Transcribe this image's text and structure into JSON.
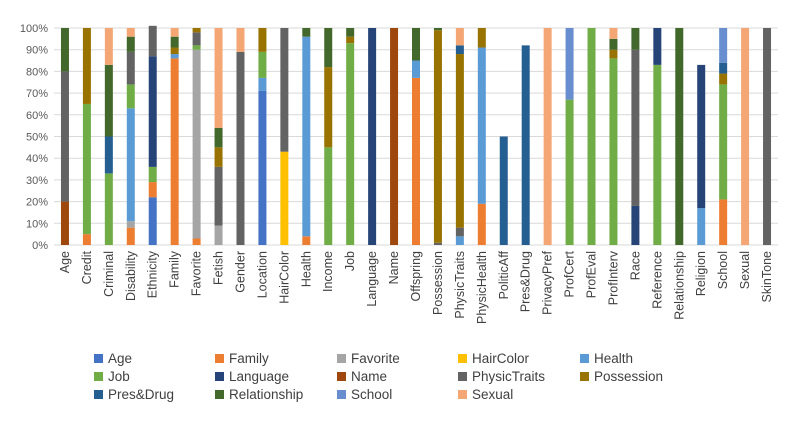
{
  "chart_data": {
    "type": "bar",
    "stacked": true,
    "y_tick_labels": [
      "0%",
      "10%",
      "20%",
      "30%",
      "40%",
      "50%",
      "60%",
      "70%",
      "80%",
      "90%",
      "100%"
    ],
    "ylim": [
      0,
      100
    ],
    "grid": true,
    "legend_position": "bottom",
    "categories": [
      "Age",
      "Credit",
      "Criminal",
      "Disability",
      "Ethnicity",
      "Family",
      "Favorite",
      "Fetish",
      "Gender",
      "Location",
      "HairColor",
      "Health",
      "Income",
      "Job",
      "Language",
      "Name",
      "Offspring",
      "Possession",
      "PhysicTraits",
      "PhysicHealth",
      "PoliticAff",
      "Pres&Drug",
      "PrivacyPref",
      "ProfCert",
      "ProfEval",
      "ProfInterv",
      "Race",
      "Reference",
      "Relationship",
      "Religion",
      "School",
      "Sexual",
      "SkinTone"
    ],
    "series": [
      {
        "name": "Age",
        "color": "#4472C4",
        "values": [
          0,
          0,
          0,
          0,
          22,
          0,
          0,
          0,
          0,
          71,
          0,
          0,
          0,
          0,
          0,
          0,
          0,
          0,
          0,
          0,
          0,
          0,
          0,
          0,
          0,
          0,
          0,
          0,
          0,
          0,
          0,
          0,
          0
        ]
      },
      {
        "name": "Family",
        "color": "#ED7D31",
        "values": [
          0,
          5,
          0,
          8,
          7,
          86,
          3,
          0,
          0,
          0,
          0,
          4,
          0,
          0,
          0,
          0,
          77,
          0,
          0,
          19,
          0,
          0,
          0,
          0,
          0,
          0,
          0,
          0,
          0,
          0,
          21,
          0,
          0
        ]
      },
      {
        "name": "Favorite",
        "color": "#A5A5A5",
        "values": [
          0,
          0,
          0,
          3,
          0,
          0,
          87,
          9,
          0,
          0,
          0,
          0,
          0,
          0,
          0,
          0,
          0,
          0,
          0,
          0,
          0,
          0,
          0,
          0,
          0,
          0,
          0,
          0,
          0,
          0,
          0,
          0,
          0
        ]
      },
      {
        "name": "HairColor",
        "color": "#FFC000",
        "values": [
          0,
          0,
          0,
          0,
          0,
          0,
          0,
          0,
          0,
          0,
          43,
          0,
          0,
          0,
          0,
          0,
          0,
          0,
          0,
          0,
          0,
          0,
          0,
          0,
          0,
          0,
          0,
          0,
          0,
          0,
          0,
          0,
          0
        ]
      },
      {
        "name": "Health",
        "color": "#5B9BD5",
        "values": [
          0,
          0,
          0,
          52,
          0,
          2,
          0,
          0,
          0,
          6,
          0,
          92,
          0,
          0,
          0,
          0,
          8,
          0,
          4,
          72,
          0,
          0,
          0,
          0,
          0,
          0,
          0,
          0,
          0,
          17,
          0,
          0,
          0
        ]
      },
      {
        "name": "Job",
        "color": "#70AD47",
        "values": [
          0,
          60,
          33,
          11,
          7,
          0,
          2,
          0,
          0,
          12,
          0,
          0,
          45,
          93,
          0,
          0,
          0,
          0,
          0,
          0,
          0,
          0,
          0,
          67,
          100,
          86,
          0,
          83,
          0,
          0,
          53,
          0,
          0
        ]
      },
      {
        "name": "Language",
        "color": "#264478",
        "values": [
          0,
          0,
          0,
          0,
          51,
          0,
          0,
          0,
          0,
          0,
          0,
          0,
          0,
          0,
          100,
          0,
          0,
          0,
          0,
          0,
          0,
          0,
          0,
          0,
          0,
          0,
          18,
          17,
          0,
          66,
          0,
          0,
          0
        ]
      },
      {
        "name": "Name",
        "color": "#9E480E",
        "values": [
          20,
          0,
          0,
          0,
          0,
          0,
          0,
          0,
          0,
          0,
          0,
          0,
          0,
          0,
          0,
          100,
          0,
          0,
          0,
          0,
          0,
          0,
          0,
          0,
          0,
          0,
          0,
          0,
          0,
          0,
          0,
          0,
          0
        ]
      },
      {
        "name": "PhysicTraits",
        "color": "#636363",
        "values": [
          60,
          0,
          0,
          15,
          14,
          0,
          6,
          27,
          89,
          0,
          57,
          0,
          0,
          0,
          0,
          0,
          0,
          1,
          4,
          0,
          0,
          0,
          0,
          0,
          0,
          0,
          72,
          0,
          0,
          0,
          0,
          0,
          100
        ]
      },
      {
        "name": "Possession",
        "color": "#997300",
        "values": [
          0,
          35,
          0,
          0,
          0,
          3,
          2,
          9,
          0,
          11,
          0,
          0,
          37,
          3,
          0,
          0,
          0,
          98,
          80,
          9,
          0,
          0,
          0,
          0,
          0,
          4,
          0,
          0,
          0,
          0,
          5,
          0,
          0
        ]
      },
      {
        "name": "Pres&Drug",
        "color": "#255E91",
        "values": [
          0,
          0,
          17,
          0,
          0,
          0,
          0,
          0,
          0,
          0,
          0,
          0,
          0,
          0,
          0,
          0,
          0,
          0,
          4,
          0,
          50,
          92,
          0,
          0,
          0,
          0,
          0,
          0,
          0,
          0,
          5,
          0,
          0
        ]
      },
      {
        "name": "Relationship",
        "color": "#43682B",
        "values": [
          20,
          0,
          33,
          7,
          0,
          5,
          0,
          9,
          0,
          0,
          0,
          4,
          18,
          4,
          0,
          0,
          15,
          1,
          0,
          0,
          0,
          0,
          0,
          0,
          0,
          5,
          10,
          0,
          100,
          0,
          0,
          0,
          0
        ]
      },
      {
        "name": "School",
        "color": "#698ED0",
        "values": [
          0,
          0,
          0,
          0,
          0,
          0,
          0,
          0,
          0,
          0,
          0,
          0,
          0,
          0,
          0,
          0,
          0,
          0,
          0,
          0,
          0,
          0,
          0,
          33,
          0,
          0,
          0,
          0,
          0,
          0,
          16,
          0,
          0
        ]
      },
      {
        "name": "Sexual",
        "color": "#F4A674",
        "values": [
          0,
          0,
          17,
          4,
          0,
          4,
          0,
          46,
          11,
          0,
          0,
          0,
          0,
          0,
          0,
          0,
          0,
          0,
          8,
          0,
          0,
          0,
          100,
          0,
          0,
          5,
          0,
          0,
          0,
          0,
          0,
          100,
          0
        ]
      }
    ]
  }
}
